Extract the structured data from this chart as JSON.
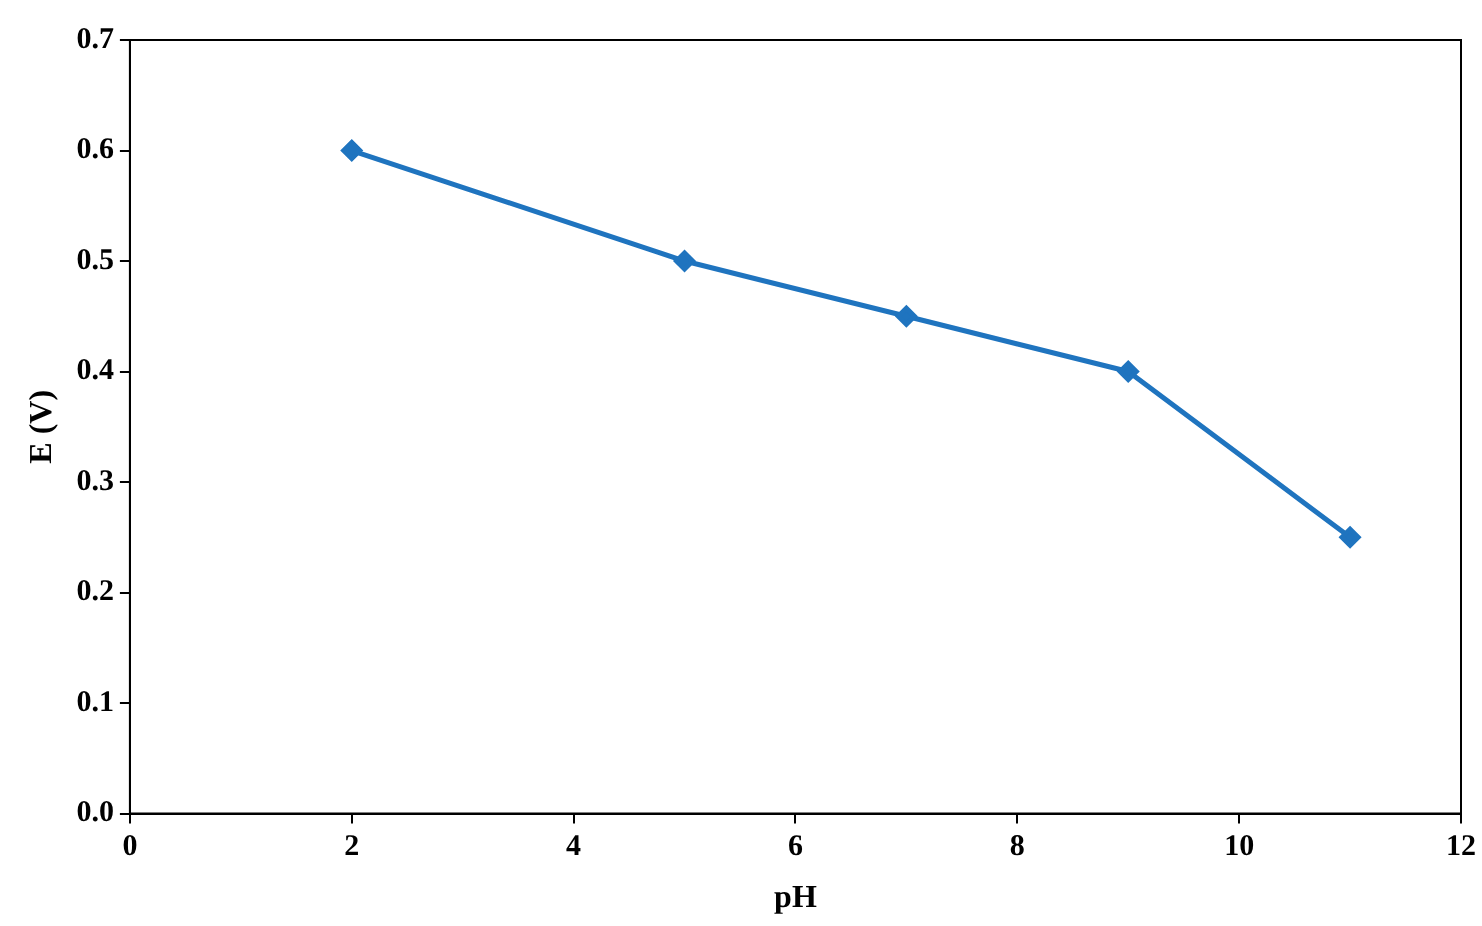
{
  "chart_data": {
    "type": "line",
    "xlabel": "pH",
    "ylabel": "E (V)",
    "x": [
      2,
      5,
      7,
      9,
      11
    ],
    "series": [
      {
        "color": "#1f74bf",
        "values": [
          0.6,
          0.5,
          0.45,
          0.4,
          0.25
        ]
      }
    ],
    "xlim": [
      0,
      12
    ],
    "xticks": [
      0,
      2,
      4,
      6,
      8,
      10,
      12
    ],
    "ylim": [
      0,
      0.7
    ],
    "yticks": [
      {
        "value": 0,
        "label": "0.0"
      },
      {
        "value": 0.1,
        "label": "0.1"
      },
      {
        "value": 0.2,
        "label": "0.2"
      },
      {
        "value": 0.3,
        "label": "0.3"
      },
      {
        "value": 0.4,
        "label": "0.4"
      },
      {
        "value": 0.5,
        "label": "0.5"
      },
      {
        "value": 0.6,
        "label": "0.6"
      },
      {
        "value": 0.7,
        "label": "0.7"
      }
    ],
    "grid": false,
    "legend": false,
    "marker": "diamond",
    "line_style": "solid"
  }
}
